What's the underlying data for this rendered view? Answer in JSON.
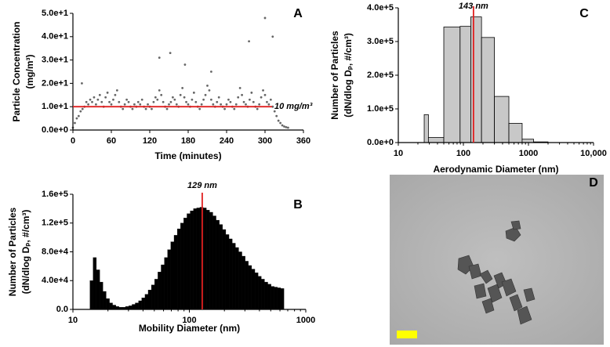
{
  "chart_data": [
    {
      "type": "scatter",
      "panel": "A",
      "xlabel": "Time (minutes)",
      "ylabel": [
        "Particle Concentration",
        "(mg/m³)"
      ],
      "color": "#666666",
      "x": [
        0,
        3,
        6,
        9,
        12,
        15,
        18,
        21,
        24,
        27,
        30,
        33,
        36,
        39,
        42,
        45,
        48,
        51,
        54,
        57,
        60,
        63,
        66,
        69,
        72,
        75,
        78,
        81,
        84,
        87,
        90,
        93,
        96,
        99,
        102,
        105,
        108,
        111,
        114,
        117,
        120,
        123,
        126,
        129,
        132,
        135,
        138,
        141,
        144,
        147,
        150,
        153,
        156,
        159,
        162,
        165,
        168,
        171,
        174,
        177,
        180,
        183,
        186,
        189,
        192,
        195,
        198,
        201,
        204,
        207,
        210,
        213,
        216,
        219,
        222,
        225,
        228,
        231,
        234,
        237,
        240,
        243,
        246,
        249,
        252,
        255,
        258,
        261,
        264,
        267,
        270,
        273,
        276,
        279,
        282,
        285,
        288,
        291,
        294,
        297,
        300,
        303,
        306,
        309,
        312,
        315,
        318,
        321,
        324,
        327,
        330,
        333,
        336,
        14,
        135,
        152,
        175,
        275,
        300,
        312,
        216
      ],
      "values": [
        1,
        3,
        5,
        6,
        8,
        9,
        10,
        12,
        11,
        13,
        12,
        14,
        11,
        13,
        15,
        12,
        10,
        14,
        16,
        12,
        11,
        13,
        15,
        17,
        12,
        10,
        9,
        11,
        13,
        12,
        10,
        9,
        11,
        10,
        12,
        11,
        13,
        10,
        9,
        11,
        10,
        9,
        12,
        14,
        13,
        17,
        15,
        12,
        10,
        9,
        11,
        12,
        14,
        13,
        11,
        10,
        15,
        18,
        14,
        12,
        11,
        10,
        13,
        16,
        12,
        10,
        9,
        11,
        13,
        15,
        19,
        17,
        13,
        11,
        10,
        12,
        14,
        11,
        10,
        9,
        11,
        13,
        12,
        10,
        9,
        11,
        14,
        18,
        15,
        12,
        11,
        10,
        13,
        16,
        12,
        10,
        9,
        11,
        14,
        17,
        15,
        12,
        11,
        13,
        10,
        8,
        6,
        4,
        3,
        2,
        1.5,
        1.2,
        1,
        20,
        31,
        33,
        28,
        38,
        48,
        40,
        25
      ],
      "xlim": [
        0,
        360
      ],
      "xticks": [
        0,
        60,
        120,
        180,
        240,
        300,
        360
      ],
      "ylim": [
        0,
        50
      ],
      "yticks": [
        {
          "value": 0,
          "label": "0.0e+0"
        },
        {
          "value": 10,
          "label": "1.0e+1"
        },
        {
          "value": 20,
          "label": "2.0e+1"
        },
        {
          "value": 30,
          "label": "3.0e+1"
        },
        {
          "value": 40,
          "label": "4.0e+1"
        },
        {
          "value": 50,
          "label": "5.0e+1"
        }
      ],
      "hline": {
        "value": 10,
        "label": "10 mg/m³",
        "color": "#e02020"
      }
    },
    {
      "type": "histogram",
      "panel": "B",
      "xlabel": "Mobility  Diameter (nm)",
      "ylabel": [
        "Number of Particles",
        "(dN/dlog Dₚ, #/cm³)"
      ],
      "color": "#000000",
      "xlog": true,
      "bins": [
        14,
        14.9,
        15.9,
        17.0,
        18.1,
        19.3,
        20.6,
        21.9,
        23.4,
        24.9,
        26.6,
        28.3,
        30.2,
        32.2,
        34.3,
        36.6,
        39.0,
        41.6,
        44.3,
        47.2,
        50.3,
        53.7,
        57.2,
        61.0,
        65.0,
        69.3,
        73.9,
        78.8,
        84.0,
        89.5,
        95.4,
        101.7,
        108.4,
        115.6,
        123.2,
        131.4,
        140.0,
        149.3,
        159.1,
        169.6,
        180.8,
        192.8,
        205.5,
        219.0,
        233.5,
        248.9,
        265.3,
        282.8,
        301.5,
        321.4,
        342.6,
        365.2,
        389.3,
        415.0,
        442.4,
        471.6,
        502.7,
        535.9,
        571.2,
        608.9,
        649.1
      ],
      "values": [
        40000,
        72000,
        55000,
        38000,
        25000,
        15000,
        9000,
        6000,
        4000,
        3000,
        3000,
        4000,
        5000,
        7000,
        9000,
        12000,
        16000,
        21000,
        27000,
        34000,
        42000,
        52000,
        62000,
        72000,
        83000,
        94000,
        103000,
        112000,
        120000,
        127000,
        133000,
        137000,
        140000,
        141000,
        142000,
        141000,
        138000,
        135000,
        130000,
        124000,
        118000,
        111000,
        104000,
        98000,
        92000,
        86000,
        80000,
        74000,
        67000,
        61000,
        56000,
        51000,
        46000,
        42000,
        38000,
        35000,
        32000,
        31000,
        30000,
        29000
      ],
      "xlim": [
        10,
        1000
      ],
      "xticks": [
        10,
        100,
        1000
      ],
      "ylim": [
        0,
        160000
      ],
      "yticks": [
        {
          "value": 0,
          "label": "0.0"
        },
        {
          "value": 40000,
          "label": "4.0e+4"
        },
        {
          "value": 80000,
          "label": "8.0e+4"
        },
        {
          "value": 120000,
          "label": "1.2e+5"
        },
        {
          "value": 160000,
          "label": "1.6e+5"
        }
      ],
      "vline": {
        "value": 129,
        "label": "129 nm",
        "color": "#e02020"
      }
    },
    {
      "type": "histogram",
      "panel": "C",
      "xlabel": "Aerodynamic Diameter (nm)",
      "ylabel": [
        "Number of Particles",
        "(dN/dlog Dₚ, #/cm³)"
      ],
      "color": "#c8c8c8",
      "xlog": true,
      "bins": [
        25,
        29,
        50,
        89,
        130,
        190,
        300,
        500,
        800,
        1200,
        2000
      ],
      "values": [
        83000,
        15000,
        343000,
        345000,
        373000,
        312000,
        137000,
        57000,
        10000,
        2000
      ],
      "xlim": [
        10,
        10000
      ],
      "xticks": [
        10,
        100,
        1000,
        {
          "value": 10000,
          "label": "10,000"
        }
      ],
      "ylim": [
        0,
        400000
      ],
      "yticks": [
        {
          "value": 0,
          "label": "0.0e+0"
        },
        {
          "value": 100000,
          "label": "1.0e+5"
        },
        {
          "value": 200000,
          "label": "2.0e+5"
        },
        {
          "value": 300000,
          "label": "3.0e+5"
        },
        {
          "value": 400000,
          "label": "4.0e+5"
        }
      ],
      "vline": {
        "value": 143,
        "label": "143 nm",
        "color": "#e02020"
      }
    }
  ],
  "image_panel": {
    "panel": "D"
  }
}
